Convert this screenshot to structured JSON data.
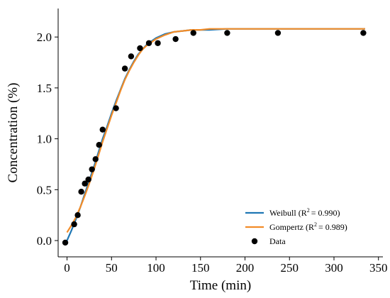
{
  "chart_data": {
    "type": "line",
    "xlabel": "Time (min)",
    "ylabel": "Concentration (%)",
    "xlim": [
      -10,
      355
    ],
    "ylim": [
      -0.16,
      2.28
    ],
    "xticks": [
      0,
      50,
      100,
      150,
      200,
      250,
      300,
      350
    ],
    "yticks": [
      0.0,
      0.5,
      1.0,
      1.5,
      2.0
    ],
    "ytick_labels": [
      "0.0",
      "0.5",
      "1.0",
      "1.5",
      "2.0"
    ],
    "legend": {
      "position": "bottom-right"
    },
    "series": [
      {
        "name": "Weibull (R² = 0.990)",
        "legend_main": "Weibull (R",
        "legend_r2": "= 0.990)",
        "kind": "line",
        "color": "#1f77b4",
        "x": [
          0,
          5,
          10,
          15,
          20,
          25,
          30,
          35,
          40,
          45,
          50,
          55,
          60,
          65,
          70,
          75,
          80,
          85,
          90,
          95,
          100,
          110,
          120,
          130,
          140,
          150,
          160,
          180,
          200,
          250,
          300,
          335
        ],
        "y": [
          0.0,
          0.1,
          0.21,
          0.33,
          0.46,
          0.59,
          0.72,
          0.86,
          1.0,
          1.12,
          1.25,
          1.37,
          1.48,
          1.59,
          1.68,
          1.76,
          1.83,
          1.88,
          1.93,
          1.96,
          1.99,
          2.03,
          2.05,
          2.06,
          2.07,
          2.07,
          2.07,
          2.08,
          2.08,
          2.08,
          2.08,
          2.08
        ]
      },
      {
        "name": "Gompertz (R² = 0.989)",
        "legend_main": "Gompertz (R",
        "legend_r2": "= 0.989)",
        "kind": "line",
        "color": "#f28c28",
        "x": [
          0,
          5,
          10,
          15,
          20,
          25,
          30,
          35,
          40,
          45,
          50,
          55,
          60,
          65,
          70,
          75,
          80,
          85,
          90,
          95,
          100,
          110,
          120,
          130,
          140,
          150,
          160,
          180,
          200,
          250,
          300,
          335
        ],
        "y": [
          0.08,
          0.15,
          0.23,
          0.33,
          0.44,
          0.56,
          0.69,
          0.83,
          0.97,
          1.1,
          1.23,
          1.35,
          1.47,
          1.58,
          1.67,
          1.75,
          1.82,
          1.88,
          1.92,
          1.95,
          1.98,
          2.02,
          2.05,
          2.06,
          2.07,
          2.07,
          2.08,
          2.08,
          2.08,
          2.08,
          2.08,
          2.08
        ]
      },
      {
        "name": "Data",
        "kind": "scatter",
        "color": "#000000",
        "x": [
          -2,
          8,
          12,
          16,
          20,
          24,
          28,
          32,
          36,
          40,
          55,
          65,
          72,
          82,
          92,
          102,
          122,
          142,
          180,
          237,
          333
        ],
        "y": [
          -0.02,
          0.16,
          0.25,
          0.48,
          0.56,
          0.6,
          0.7,
          0.8,
          0.94,
          1.09,
          1.3,
          1.69,
          1.81,
          1.89,
          1.94,
          1.94,
          1.98,
          2.04,
          2.04,
          2.04,
          2.04
        ]
      }
    ]
  }
}
